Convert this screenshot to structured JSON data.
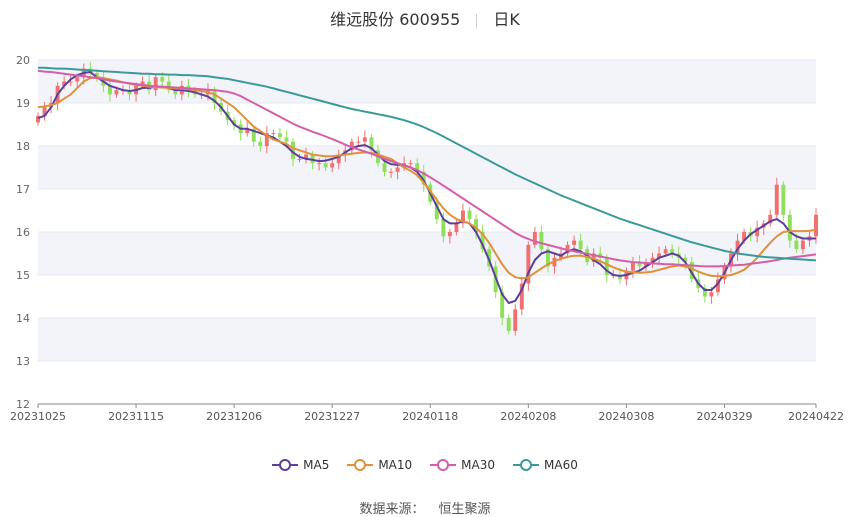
{
  "header": {
    "stock": "维远股份 600955",
    "period": "日K"
  },
  "legend": [
    {
      "name": "MA5",
      "color": "#5b3f9b"
    },
    {
      "name": "MA10",
      "color": "#e0913a"
    },
    {
      "name": "MA30",
      "color": "#d45fa8"
    },
    {
      "name": "MA60",
      "color": "#3a9a9a"
    }
  ],
  "source": {
    "label": "数据来源：",
    "value": "恒生聚源"
  },
  "colors": {
    "up": "#f07070",
    "down": "#8ee05a",
    "grid": "#e6e8f2",
    "band": "#f3f4fa"
  },
  "chart_data": {
    "type": "candlestick",
    "ylim": [
      12,
      20
    ],
    "y_ticks": [
      "12",
      "13",
      "14",
      "15",
      "16",
      "17",
      "18",
      "19",
      "20"
    ],
    "x_tick_labels": [
      "20231025",
      "20231115",
      "20231206",
      "20231227",
      "20240118",
      "20240208",
      "20240308",
      "20240329",
      "20240422"
    ],
    "x_tick_indices": [
      0,
      15,
      30,
      45,
      60,
      75,
      90,
      105,
      119
    ],
    "closes": [
      18.7,
      18.9,
      19.0,
      19.4,
      19.5,
      19.5,
      19.6,
      19.8,
      19.7,
      19.6,
      19.4,
      19.2,
      19.3,
      19.3,
      19.2,
      19.4,
      19.5,
      19.3,
      19.6,
      19.5,
      19.3,
      19.2,
      19.4,
      19.3,
      19.2,
      19.2,
      19.3,
      19.0,
      18.8,
      18.6,
      18.5,
      18.3,
      18.4,
      18.1,
      18.0,
      18.3,
      18.3,
      18.2,
      18.1,
      17.7,
      17.7,
      17.8,
      17.6,
      17.6,
      17.5,
      17.6,
      17.8,
      17.9,
      18.1,
      18.1,
      18.2,
      17.9,
      17.6,
      17.4,
      17.4,
      17.5,
      17.6,
      17.6,
      17.4,
      17.1,
      16.7,
      16.3,
      15.9,
      16.0,
      16.2,
      16.5,
      16.3,
      16.0,
      15.6,
      15.2,
      14.6,
      14.0,
      13.7,
      14.2,
      14.8,
      15.7,
      16.0,
      15.6,
      15.2,
      15.4,
      15.5,
      15.7,
      15.8,
      15.6,
      15.3,
      15.5,
      15.4,
      15.0,
      15.0,
      14.9,
      15.1,
      15.3,
      15.2,
      15.3,
      15.4,
      15.5,
      15.6,
      15.5,
      15.4,
      15.3,
      14.9,
      14.7,
      14.5,
      14.6,
      14.9,
      15.2,
      15.5,
      15.8,
      16.0,
      15.9,
      16.1,
      16.2,
      16.4,
      17.1,
      16.4,
      15.8,
      15.6,
      15.8,
      15.9,
      16.4
    ],
    "ma5": [
      18.65,
      18.7,
      18.9,
      19.2,
      19.4,
      19.55,
      19.65,
      19.7,
      19.72,
      19.6,
      19.5,
      19.4,
      19.35,
      19.3,
      19.28,
      19.3,
      19.35,
      19.35,
      19.38,
      19.38,
      19.35,
      19.3,
      19.3,
      19.28,
      19.25,
      19.2,
      19.15,
      19.05,
      18.9,
      18.7,
      18.5,
      18.4,
      18.4,
      18.35,
      18.3,
      18.25,
      18.2,
      18.1,
      18.0,
      17.85,
      17.75,
      17.7,
      17.68,
      17.65,
      17.66,
      17.7,
      17.75,
      17.85,
      17.95,
      18.0,
      18.02,
      17.95,
      17.8,
      17.65,
      17.58,
      17.56,
      17.55,
      17.5,
      17.4,
      17.2,
      16.9,
      16.6,
      16.3,
      16.2,
      16.2,
      16.25,
      16.2,
      16.0,
      15.7,
      15.35,
      14.95,
      14.55,
      14.35,
      14.4,
      14.65,
      15.05,
      15.35,
      15.5,
      15.55,
      15.5,
      15.45,
      15.55,
      15.6,
      15.55,
      15.45,
      15.35,
      15.25,
      15.1,
      15.0,
      14.98,
      15.0,
      15.05,
      15.1,
      15.2,
      15.3,
      15.4,
      15.45,
      15.5,
      15.45,
      15.3,
      15.05,
      14.8,
      14.65,
      14.65,
      14.8,
      15.05,
      15.35,
      15.6,
      15.8,
      15.95,
      16.05,
      16.15,
      16.25,
      16.3,
      16.2,
      16.0,
      15.9,
      15.85,
      15.85,
      15.85
    ],
    "ma10": [
      18.9,
      18.92,
      18.95,
      19.0,
      19.1,
      19.2,
      19.35,
      19.5,
      19.58,
      19.6,
      19.58,
      19.55,
      19.52,
      19.48,
      19.45,
      19.42,
      19.4,
      19.38,
      19.37,
      19.36,
      19.35,
      19.34,
      19.33,
      19.32,
      19.3,
      19.28,
      19.25,
      19.2,
      19.1,
      19.0,
      18.9,
      18.75,
      18.6,
      18.45,
      18.35,
      18.25,
      18.15,
      18.1,
      18.05,
      17.95,
      17.9,
      17.85,
      17.8,
      17.78,
      17.76,
      17.76,
      17.78,
      17.8,
      17.82,
      17.84,
      17.85,
      17.84,
      17.8,
      17.75,
      17.7,
      17.6,
      17.5,
      17.42,
      17.32,
      17.15,
      16.95,
      16.75,
      16.55,
      16.4,
      16.3,
      16.25,
      16.2,
      16.1,
      15.95,
      15.75,
      15.5,
      15.25,
      15.05,
      14.95,
      14.92,
      14.95,
      15.05,
      15.15,
      15.25,
      15.32,
      15.38,
      15.42,
      15.45,
      15.45,
      15.42,
      15.38,
      15.32,
      15.25,
      15.18,
      15.12,
      15.08,
      15.06,
      15.05,
      15.06,
      15.08,
      15.12,
      15.16,
      15.2,
      15.22,
      15.2,
      15.15,
      15.08,
      15.02,
      14.98,
      14.97,
      14.98,
      15.0,
      15.05,
      15.12,
      15.25,
      15.4,
      15.58,
      15.75,
      15.9,
      16.0,
      16.02,
      16.02,
      16.02,
      16.03,
      16.05
    ],
    "ma30": [
      19.75,
      19.73,
      19.72,
      19.7,
      19.68,
      19.66,
      19.64,
      19.62,
      19.6,
      19.58,
      19.55,
      19.52,
      19.5,
      19.48,
      19.46,
      19.44,
      19.42,
      19.4,
      19.39,
      19.38,
      19.37,
      19.36,
      19.35,
      19.34,
      19.33,
      19.32,
      19.31,
      19.3,
      19.28,
      19.26,
      19.22,
      19.16,
      19.08,
      19.0,
      18.92,
      18.84,
      18.76,
      18.68,
      18.6,
      18.52,
      18.45,
      18.39,
      18.33,
      18.28,
      18.22,
      18.16,
      18.1,
      18.03,
      17.97,
      17.92,
      17.87,
      17.82,
      17.76,
      17.7,
      17.65,
      17.6,
      17.55,
      17.5,
      17.44,
      17.36,
      17.27,
      17.18,
      17.08,
      16.98,
      16.88,
      16.78,
      16.68,
      16.58,
      16.48,
      16.38,
      16.28,
      16.18,
      16.08,
      15.98,
      15.9,
      15.84,
      15.78,
      15.74,
      15.7,
      15.66,
      15.62,
      15.58,
      15.55,
      15.52,
      15.49,
      15.46,
      15.43,
      15.4,
      15.37,
      15.34,
      15.32,
      15.3,
      15.29,
      15.28,
      15.27,
      15.26,
      15.25,
      15.25,
      15.24,
      15.23,
      15.22,
      15.21,
      15.2,
      15.2,
      15.2,
      15.21,
      15.22,
      15.23,
      15.24,
      15.26,
      15.28,
      15.3,
      15.32,
      15.35,
      15.38,
      15.4,
      15.42,
      15.44,
      15.46,
      15.48
    ],
    "ma60": [
      19.82,
      19.82,
      19.81,
      19.8,
      19.8,
      19.79,
      19.78,
      19.77,
      19.76,
      19.75,
      19.74,
      19.73,
      19.72,
      19.71,
      19.7,
      19.69,
      19.68,
      19.68,
      19.67,
      19.67,
      19.66,
      19.66,
      19.65,
      19.65,
      19.64,
      19.63,
      19.62,
      19.6,
      19.58,
      19.56,
      19.53,
      19.5,
      19.47,
      19.44,
      19.41,
      19.38,
      19.34,
      19.3,
      19.26,
      19.22,
      19.18,
      19.14,
      19.1,
      19.06,
      19.02,
      18.98,
      18.94,
      18.9,
      18.86,
      18.83,
      18.8,
      18.77,
      18.74,
      18.71,
      18.68,
      18.64,
      18.6,
      18.55,
      18.5,
      18.44,
      18.37,
      18.3,
      18.22,
      18.14,
      18.06,
      17.98,
      17.9,
      17.82,
      17.74,
      17.66,
      17.58,
      17.5,
      17.42,
      17.34,
      17.27,
      17.2,
      17.13,
      17.06,
      16.99,
      16.92,
      16.85,
      16.79,
      16.73,
      16.67,
      16.61,
      16.55,
      16.49,
      16.43,
      16.37,
      16.31,
      16.26,
      16.21,
      16.16,
      16.11,
      16.06,
      16.01,
      15.96,
      15.91,
      15.86,
      15.81,
      15.76,
      15.72,
      15.68,
      15.64,
      15.6,
      15.56,
      15.53,
      15.5,
      15.48,
      15.46,
      15.44,
      15.42,
      15.41,
      15.4,
      15.39,
      15.38,
      15.37,
      15.36,
      15.35,
      15.34
    ]
  }
}
